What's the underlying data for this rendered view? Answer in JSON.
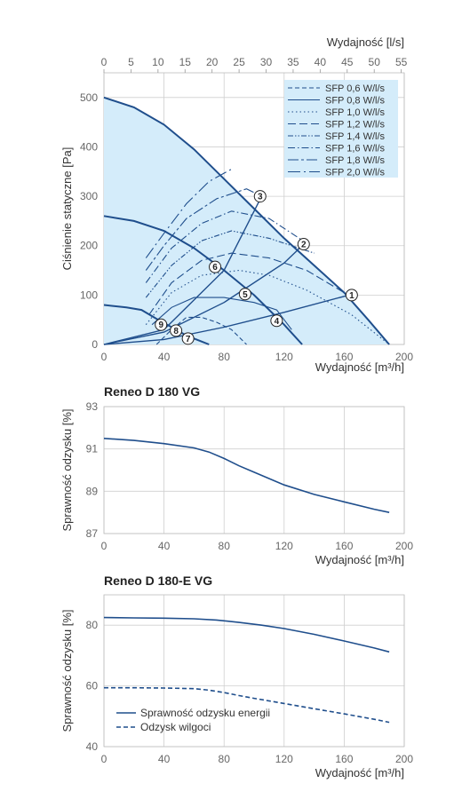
{
  "chart_data": [
    {
      "type": "line",
      "title": "",
      "xlabel": "Wydajność [m³/h]",
      "xlabel_top": "Wydajność [l/s]",
      "ylabel": "Ciśnienie statyczne [Pa]",
      "xlim": [
        0,
        200
      ],
      "ylim": [
        0,
        550
      ],
      "x_ticks": [
        "0",
        "40",
        "80",
        "120",
        "160",
        "200"
      ],
      "x_top_ticks": [
        "0",
        "5",
        "10",
        "15",
        "20",
        "25",
        "30",
        "35",
        "40",
        "45",
        "50",
        "55"
      ],
      "y_ticks": [
        "0",
        "100",
        "200",
        "300",
        "400",
        "500"
      ],
      "area_color": "#d4ecfa",
      "fan_curves": [
        {
          "x": [
            0,
            20,
            40,
            60,
            80,
            100,
            120,
            140,
            160,
            176,
            190
          ],
          "y": [
            500,
            480,
            445,
            395,
            335,
            275,
            215,
            160,
            105,
            50,
            0
          ]
        },
        {
          "x": [
            0,
            20,
            40,
            60,
            80,
            100,
            120,
            132
          ],
          "y": [
            260,
            250,
            230,
            195,
            150,
            100,
            40,
            0
          ]
        },
        {
          "x": [
            0,
            15,
            25,
            35,
            45,
            55,
            65,
            70
          ],
          "y": [
            80,
            75,
            70,
            52,
            35,
            18,
            6,
            0
          ]
        }
      ],
      "system_curves": [
        {
          "x": [
            0,
            40,
            80,
            105
          ],
          "y": [
            0,
            30,
            150,
            300
          ]
        },
        {
          "x": [
            0,
            40,
            80,
            120,
            132
          ],
          "y": [
            0,
            25,
            85,
            165,
            200
          ]
        },
        {
          "x": [
            0,
            40,
            80,
            120,
            163
          ],
          "y": [
            0,
            10,
            35,
            65,
            100
          ]
        }
      ],
      "sfp_legend": [
        "SFP 0,6 W/l/s",
        "SFP 0,8 W/l/s",
        "SFP 1,0 W/l/s",
        "SFP 1,2 W/l/s",
        "SFP 1,4 W/l/s",
        "SFP 1,6 W/l/s",
        "SFP 1,8 W/l/s",
        "SFP 2,0 W/l/s"
      ],
      "sfp_curves": [
        {
          "x": [
            35,
            45,
            55,
            65,
            75,
            85,
            95
          ],
          "y": [
            0,
            30,
            55,
            55,
            45,
            30,
            0
          ]
        },
        {
          "x": [
            32,
            45,
            60,
            80,
            100,
            115,
            125
          ],
          "y": [
            40,
            75,
            95,
            95,
            85,
            70,
            30
          ]
        },
        {
          "x": [
            28,
            45,
            65,
            90,
            110,
            135,
            165,
            190
          ],
          "y": [
            40,
            105,
            140,
            150,
            140,
            110,
            60,
            0
          ]
        },
        {
          "x": [
            30,
            45,
            65,
            85,
            110,
            135,
            160
          ],
          "y": [
            60,
            125,
            170,
            185,
            175,
            150,
            105
          ]
        },
        {
          "x": [
            28,
            45,
            65,
            85,
            110,
            140
          ],
          "y": [
            95,
            160,
            210,
            230,
            215,
            185
          ]
        },
        {
          "x": [
            28,
            45,
            65,
            85,
            110,
            135
          ],
          "y": [
            125,
            195,
            245,
            270,
            255,
            205
          ]
        },
        {
          "x": [
            28,
            40,
            55,
            75,
            95,
            105
          ],
          "y": [
            150,
            200,
            255,
            295,
            315,
            300
          ]
        },
        {
          "x": [
            28,
            40,
            55,
            70,
            85
          ],
          "y": [
            175,
            225,
            285,
            330,
            355
          ]
        }
      ],
      "points": [
        {
          "label": "1",
          "x": 165,
          "y": 100
        },
        {
          "label": "2",
          "x": 133,
          "y": 203
        },
        {
          "label": "3",
          "x": 104,
          "y": 300
        },
        {
          "label": "4",
          "x": 115,
          "y": 48
        },
        {
          "label": "5",
          "x": 94,
          "y": 102
        },
        {
          "label": "6",
          "x": 74,
          "y": 157
        },
        {
          "label": "7",
          "x": 56,
          "y": 12
        },
        {
          "label": "8",
          "x": 48,
          "y": 28
        },
        {
          "label": "9",
          "x": 38,
          "y": 40
        }
      ]
    },
    {
      "type": "line",
      "title": "Reneo D 180 VG",
      "xlabel": "Wydajność [m³/h]",
      "ylabel": "Sprawność odzysku [%]",
      "xlim": [
        0,
        200
      ],
      "ylim": [
        87,
        93
      ],
      "x_ticks": [
        "0",
        "40",
        "80",
        "120",
        "160",
        "200"
      ],
      "y_ticks": [
        "87",
        "89",
        "91",
        "93"
      ],
      "series": [
        {
          "x": [
            0,
            20,
            40,
            60,
            70,
            80,
            90,
            100,
            120,
            140,
            160,
            180,
            190
          ],
          "y": [
            91.5,
            91.4,
            91.25,
            91.05,
            90.85,
            90.55,
            90.2,
            89.9,
            89.3,
            88.85,
            88.5,
            88.15,
            88.0
          ]
        }
      ]
    },
    {
      "type": "line",
      "title": "Reneo D 180-E VG",
      "xlabel": "Wydajność [m³/h]",
      "ylabel": "Sprawność odzysku [%]",
      "xlim": [
        0,
        200
      ],
      "ylim": [
        40,
        90
      ],
      "x_ticks": [
        "0",
        "40",
        "80",
        "120",
        "160",
        "200"
      ],
      "y_ticks": [
        "40",
        "60",
        "80"
      ],
      "legend": [
        "Sprawność odzysku energii",
        "Odzysk wilgoci"
      ],
      "series": [
        {
          "name": "Sprawność odzysku energii",
          "dash": "solid",
          "x": [
            0,
            20,
            40,
            60,
            75,
            90,
            105,
            120,
            140,
            160,
            180,
            190
          ],
          "y": [
            82.5,
            82.4,
            82.3,
            82.1,
            81.7,
            80.9,
            80.0,
            78.9,
            77.0,
            74.8,
            72.5,
            71.2
          ]
        },
        {
          "name": "Odzysk wilgoci",
          "dash": "dashed",
          "x": [
            0,
            20,
            40,
            60,
            70,
            80,
            90,
            100,
            120,
            140,
            160,
            180,
            190
          ],
          "y": [
            59.4,
            59.4,
            59.3,
            59.1,
            58.6,
            57.8,
            56.8,
            55.9,
            54.2,
            52.5,
            50.8,
            49.0,
            48.0
          ]
        }
      ]
    }
  ]
}
